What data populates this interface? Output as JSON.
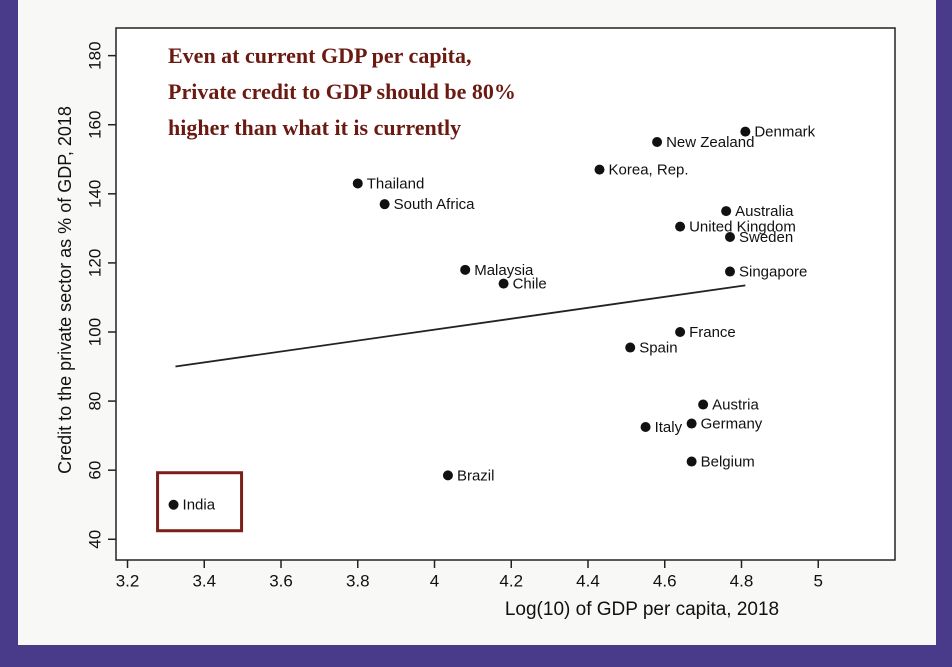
{
  "chart_data": {
    "type": "scatter",
    "xlabel": "Log(10) of GDP per capita, 2018",
    "ylabel": "Credit to the private sector as % of GDP, 2018",
    "annotation": [
      "Even at current GDP per capita,",
      "Private credit to GDP should be 80%",
      "higher than what it is currently"
    ],
    "point_labels": [
      "India",
      "Brazil",
      "Thailand",
      "South Africa",
      "Malaysia",
      "Chile",
      "Korea, Rep.",
      "New Zealand",
      "Denmark",
      "Australia",
      "United Kingdom",
      "Sweden",
      "Singapore",
      "France",
      "Spain",
      "Austria",
      "Germany",
      "Italy",
      "Belgium"
    ],
    "x": [
      3.32,
      4.035,
      3.8,
      3.87,
      4.08,
      4.18,
      4.43,
      4.58,
      4.81,
      4.76,
      4.64,
      4.77,
      4.77,
      4.64,
      4.51,
      4.7,
      4.67,
      4.55,
      4.67
    ],
    "values": [
      50,
      58.5,
      143,
      137,
      118,
      114,
      147,
      155,
      158,
      135,
      130.5,
      127.5,
      117.5,
      100,
      95.5,
      79,
      73.5,
      72.5,
      62.5
    ],
    "color": "#111111",
    "trend_line": {
      "x": [
        3.325,
        4.81
      ],
      "values": [
        90,
        113.5
      ],
      "color": "#222222"
    },
    "highlight_color": "#7a1f1a",
    "annotation_color": "#6b1a12",
    "xlim": [
      3.17,
      5.2
    ],
    "ylim": [
      34,
      188
    ],
    "xticks": [
      3.2,
      3.4,
      3.6,
      3.8,
      4,
      4.2,
      4.4,
      4.6,
      4.8,
      5
    ],
    "yticks": [
      40,
      60,
      80,
      100,
      120,
      140,
      160,
      180
    ]
  }
}
